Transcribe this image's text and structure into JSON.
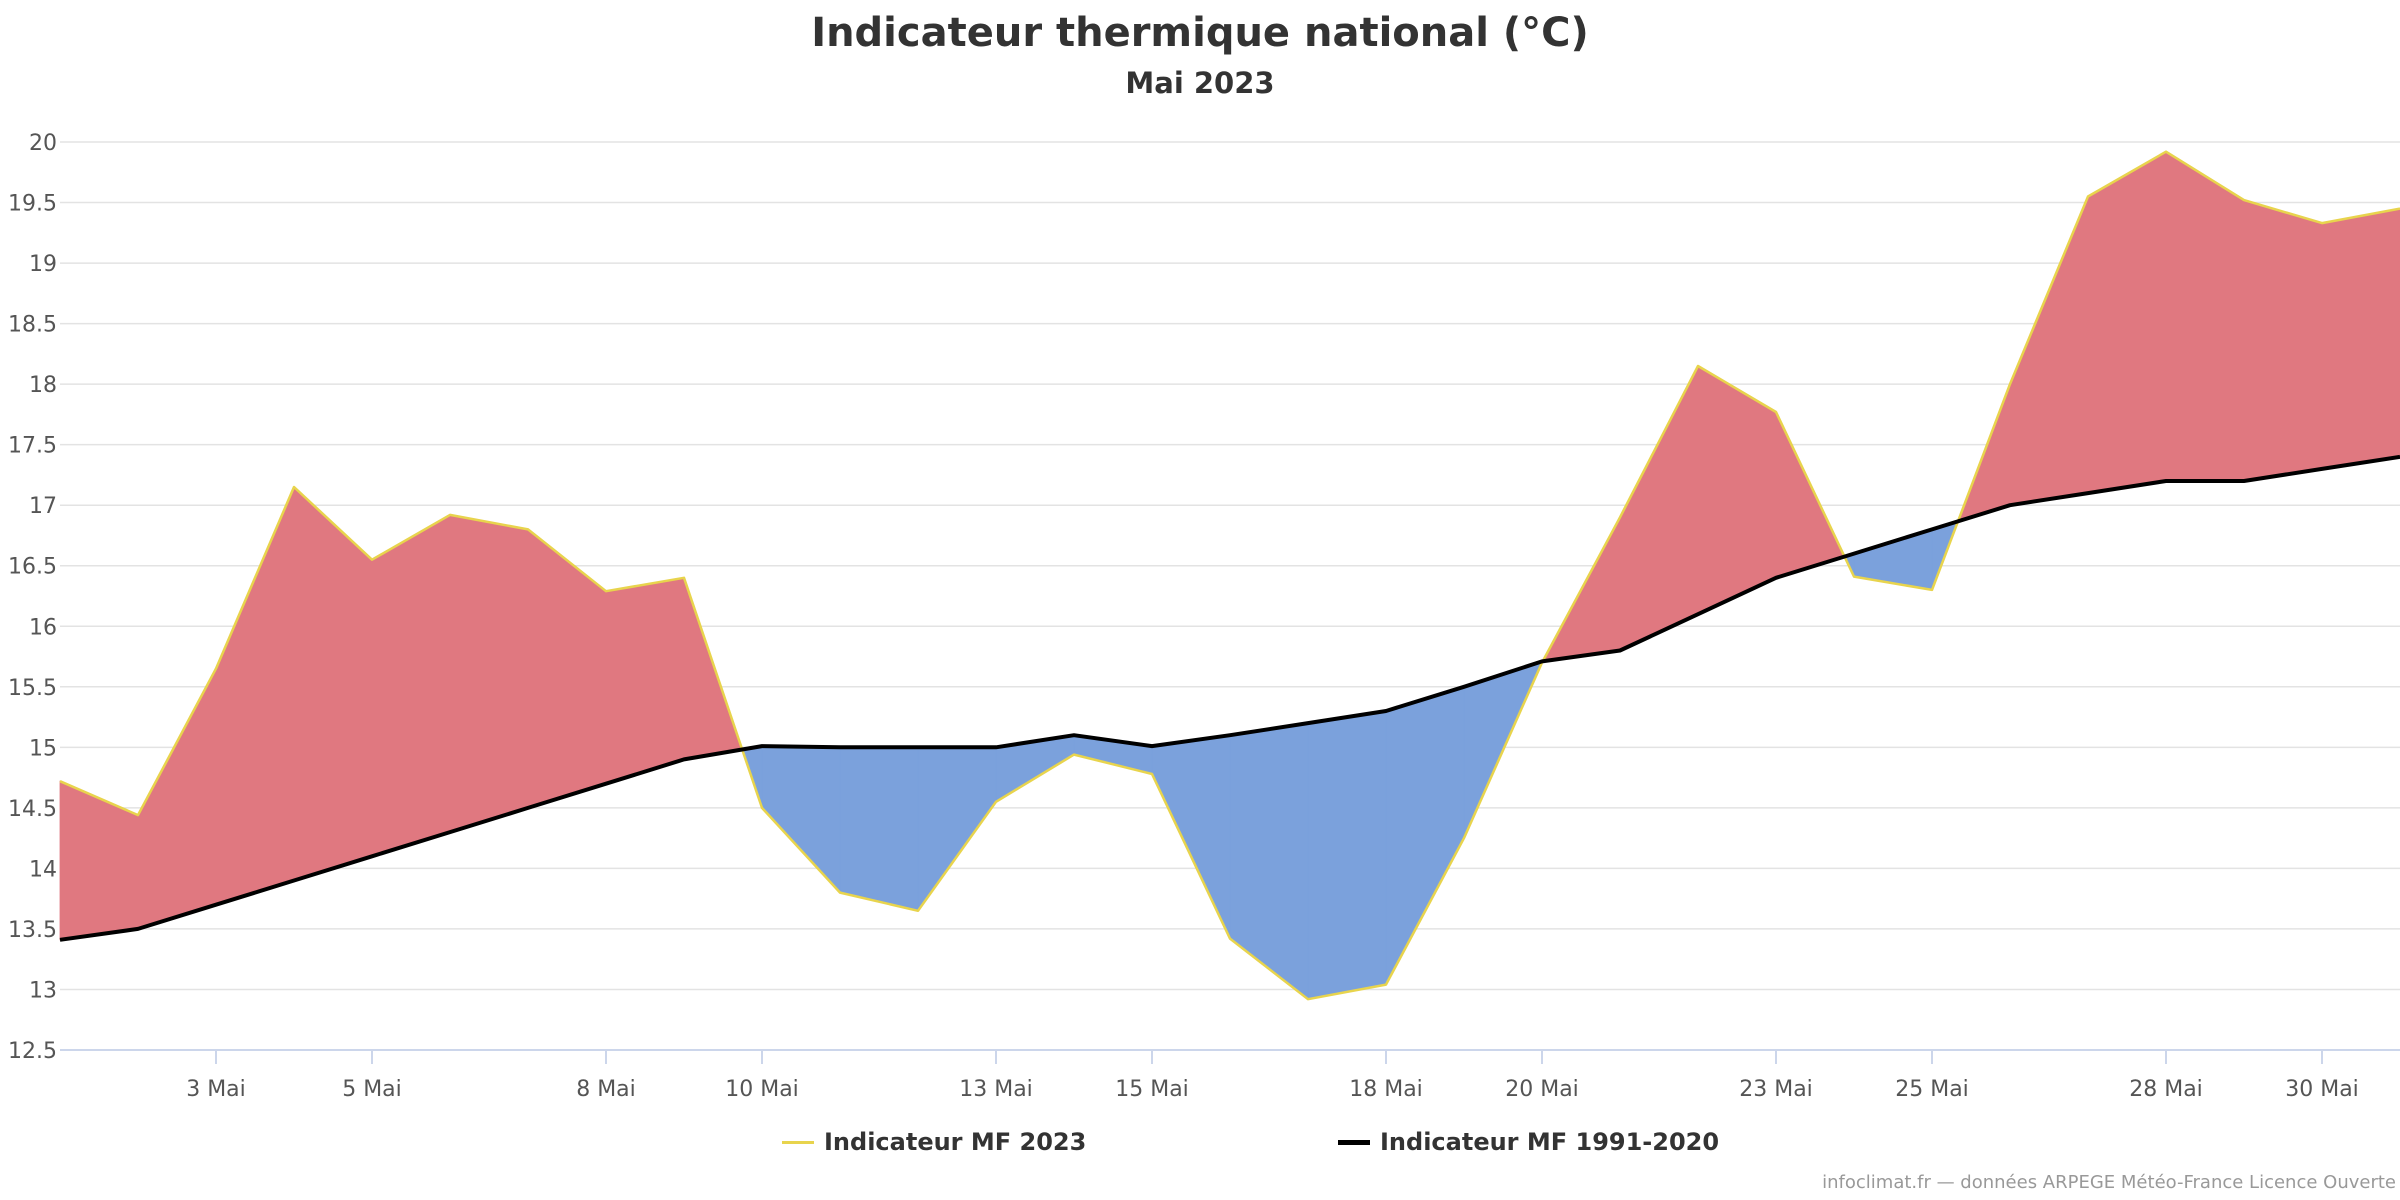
{
  "chart_data": {
    "type": "area",
    "title": "Indicateur thermique national (°C)",
    "subtitle": "Mai 2023",
    "x": [
      "1 Mai",
      "2 Mai",
      "3 Mai",
      "4 Mai",
      "5 Mai",
      "6 Mai",
      "7 Mai",
      "8 Mai",
      "9 Mai",
      "10 Mai",
      "11 Mai",
      "12 Mai",
      "13 Mai",
      "14 Mai",
      "15 Mai",
      "16 Mai",
      "17 Mai",
      "18 Mai",
      "19 Mai",
      "20 Mai",
      "21 Mai",
      "22 Mai",
      "23 Mai",
      "24 Mai",
      "25 Mai",
      "26 Mai",
      "27 Mai",
      "28 Mai",
      "29 Mai",
      "30 Mai",
      "31 Mai"
    ],
    "xtick_labels": [
      "3 Mai",
      "5 Mai",
      "8 Mai",
      "10 Mai",
      "13 Mai",
      "15 Mai",
      "18 Mai",
      "20 Mai",
      "23 Mai",
      "25 Mai",
      "28 Mai",
      "30 Mai"
    ],
    "ylim": [
      12.5,
      20
    ],
    "yticks": [
      "12.5",
      "13",
      "13.5",
      "14",
      "14.5",
      "15",
      "15.5",
      "16",
      "16.5",
      "17",
      "17.5",
      "18",
      "18.5",
      "19",
      "19.5",
      "20"
    ],
    "grid": true,
    "legend_position": "bottom",
    "series": [
      {
        "name": "Indicateur MF 2023",
        "color": "#e8d44d",
        "values": [
          14.72,
          14.44,
          15.65,
          17.15,
          16.55,
          16.92,
          16.8,
          16.29,
          16.4,
          14.5,
          13.8,
          13.65,
          14.55,
          14.94,
          14.78,
          13.42,
          12.92,
          13.04,
          14.25,
          15.7,
          16.9,
          18.15,
          17.77,
          16.41,
          16.3,
          18.0,
          19.55,
          19.92,
          19.52,
          19.33,
          19.45
        ]
      },
      {
        "name": "Indicateur MF 1991-2020",
        "color": "#000000",
        "values": [
          13.41,
          13.5,
          13.7,
          13.9,
          14.1,
          14.3,
          14.5,
          14.7,
          14.9,
          15.01,
          15.0,
          15.0,
          15.0,
          15.1,
          15.01,
          15.1,
          15.2,
          15.3,
          15.5,
          15.71,
          15.8,
          16.1,
          16.4,
          16.6,
          16.8,
          17.0,
          17.1,
          17.2,
          17.2,
          17.3,
          17.4
        ]
      }
    ],
    "fill_colors": {
      "above": "#e07880",
      "below": "#7ba1dc"
    }
  },
  "credits": "infoclimat.fr — données ARPEGE Météo-France Licence Ouverte"
}
